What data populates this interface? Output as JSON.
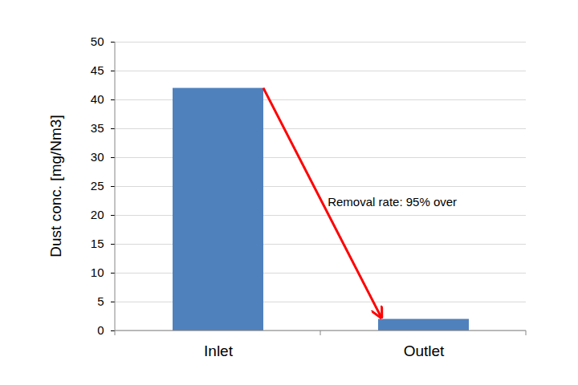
{
  "chart_data": {
    "type": "bar",
    "categories": [
      "Inlet",
      "Outlet"
    ],
    "values": [
      42,
      2
    ],
    "color": "#4f81bd",
    "y_label": "Dust conc. [mg/Nm3]",
    "annotation": "Removal rate: 95% over",
    "ylim": [
      0,
      50
    ],
    "yticks": [
      0,
      5,
      10,
      15,
      20,
      25,
      30,
      35,
      40,
      45,
      50
    ],
    "grid": true
  }
}
